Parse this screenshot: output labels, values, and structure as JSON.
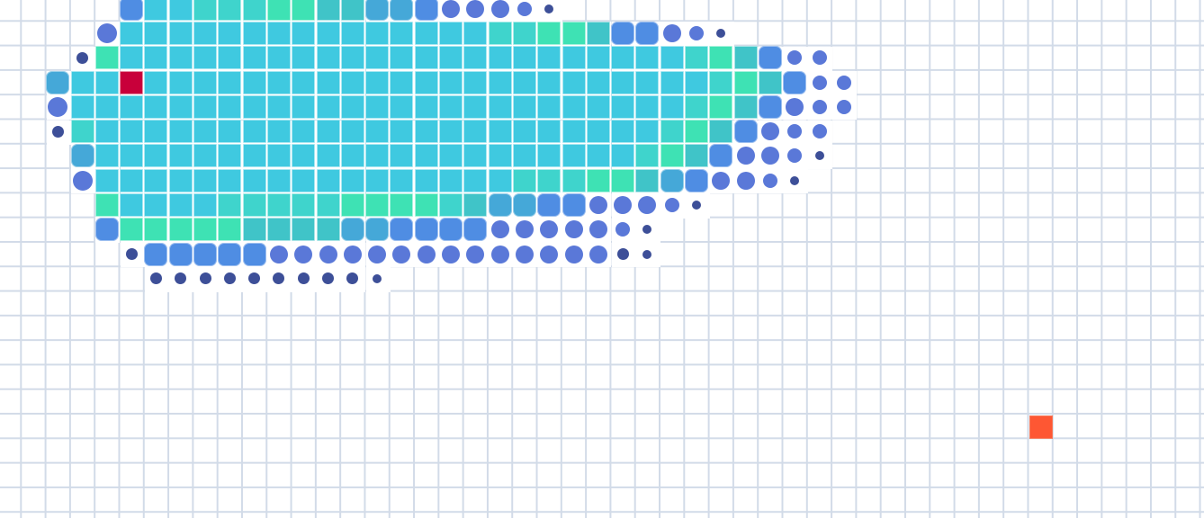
{
  "palette": {
    "cyan": "#3fc9e0",
    "teal": "#3fd4cc",
    "mint": "#3ee2b4",
    "seaTeal": "#40c4c8",
    "steel": "#45a8d8",
    "blue": "#4f8de3",
    "royal": "#5a78d8",
    "indigo": "#4b62b4",
    "navy": "#3d4f98",
    "crimson": "#c8003a",
    "orange": "#fe5733"
  },
  "board": {
    "grid_color": "#d2dbe8",
    "background": "#ffffff"
  },
  "blob": {
    "rows": [
      {
        "r": 0,
        "start": 5,
        "cells": [
          "b",
          "c",
          "c",
          "t",
          "t",
          "t",
          "m",
          "m",
          "s",
          "s",
          "S",
          "S",
          "B",
          "o",
          "o",
          "o",
          "o",
          "d"
        ]
      },
      {
        "r": 1,
        "start": 4,
        "cells": [
          "o",
          "c",
          "c",
          "c",
          "c",
          "c",
          "c",
          "c",
          "c",
          "c",
          "c",
          "c",
          "c",
          "c",
          "c",
          "c",
          "t",
          "t",
          "m",
          "m",
          "s",
          "B",
          "B",
          "o",
          "o",
          "d"
        ]
      },
      {
        "r": 2,
        "start": 3,
        "cells": [
          "d",
          "m",
          "c",
          "c",
          "c",
          "c",
          "c",
          "c",
          "c",
          "c",
          "c",
          "c",
          "c",
          "c",
          "c",
          "c",
          "c",
          "c",
          "c",
          "c",
          "c",
          "c",
          "c",
          "c",
          "c",
          "t",
          "m",
          "s",
          "b",
          "o",
          "o"
        ]
      },
      {
        "r": 3,
        "start": 2,
        "cells": [
          "S",
          "c",
          "c",
          "X",
          "c",
          "c",
          "c",
          "c",
          "c",
          "c",
          "c",
          "c",
          "c",
          "c",
          "c",
          "c",
          "c",
          "c",
          "c",
          "c",
          "c",
          "c",
          "c",
          "c",
          "c",
          "c",
          "c",
          "t",
          "m",
          "s",
          "B",
          "o",
          "o"
        ]
      },
      {
        "r": 4,
        "start": 2,
        "cells": [
          "o",
          "c",
          "c",
          "c",
          "c",
          "c",
          "c",
          "c",
          "c",
          "c",
          "c",
          "c",
          "c",
          "c",
          "c",
          "c",
          "c",
          "c",
          "c",
          "c",
          "c",
          "c",
          "c",
          "c",
          "c",
          "c",
          "t",
          "m",
          "s",
          "b",
          "o",
          "o",
          "o"
        ]
      },
      {
        "r": 5,
        "start": 2,
        "cells": [
          "d",
          "t",
          "c",
          "c",
          "c",
          "c",
          "c",
          "c",
          "c",
          "c",
          "c",
          "c",
          "c",
          "c",
          "c",
          "c",
          "c",
          "c",
          "c",
          "c",
          "c",
          "c",
          "c",
          "c",
          "c",
          "t",
          "m",
          "s",
          "b",
          "o",
          "o",
          "o"
        ]
      },
      {
        "r": 6,
        "start": 3,
        "cells": [
          "S",
          "c",
          "c",
          "c",
          "c",
          "c",
          "c",
          "c",
          "c",
          "c",
          "c",
          "c",
          "c",
          "c",
          "c",
          "c",
          "c",
          "c",
          "c",
          "c",
          "c",
          "c",
          "c",
          "t",
          "m",
          "s",
          "b",
          "o",
          "o",
          "o",
          "d"
        ]
      },
      {
        "r": 7,
        "start": 3,
        "cells": [
          "o",
          "c",
          "c",
          "c",
          "c",
          "c",
          "c",
          "c",
          "c",
          "c",
          "c",
          "c",
          "c",
          "c",
          "c",
          "c",
          "c",
          "c",
          "t",
          "t",
          "t",
          "m",
          "m",
          "s",
          "S",
          "B",
          "o",
          "o",
          "o",
          "d"
        ]
      },
      {
        "r": 8,
        "start": 4,
        "cells": [
          "m",
          "c",
          "c",
          "c",
          "c",
          "t",
          "t",
          "t",
          "t",
          "t",
          "m",
          "m",
          "m",
          "m",
          "t",
          "s",
          "S",
          "S",
          "B",
          "B",
          "o",
          "o",
          "o",
          "o",
          "d"
        ]
      },
      {
        "r": 9,
        "start": 4,
        "cells": [
          "b",
          "m",
          "m",
          "m",
          "m",
          "m",
          "s",
          "s",
          "s",
          "s",
          "S",
          "S",
          "B",
          "B",
          "B",
          "B",
          "o",
          "o",
          "o",
          "o",
          "o",
          "o",
          "d"
        ]
      },
      {
        "r": 10,
        "start": 5,
        "cells": [
          "d",
          "B",
          "B",
          "B",
          "B",
          "B",
          "o",
          "o",
          "o",
          "o",
          "o",
          "o",
          "o",
          "o",
          "o",
          "o",
          "o",
          "o",
          "o",
          "o",
          "d",
          "d"
        ]
      },
      {
        "r": 11,
        "start": 6,
        "cells": [
          "d",
          "d",
          "d",
          "d",
          "d",
          "d",
          "d",
          "d",
          "d",
          "d"
        ]
      }
    ]
  },
  "markers": {
    "target": {
      "row": 3,
      "col": 6,
      "color": "#c8003a"
    },
    "food": {
      "row": 17,
      "col": 42,
      "color": "#fe5733"
    }
  }
}
